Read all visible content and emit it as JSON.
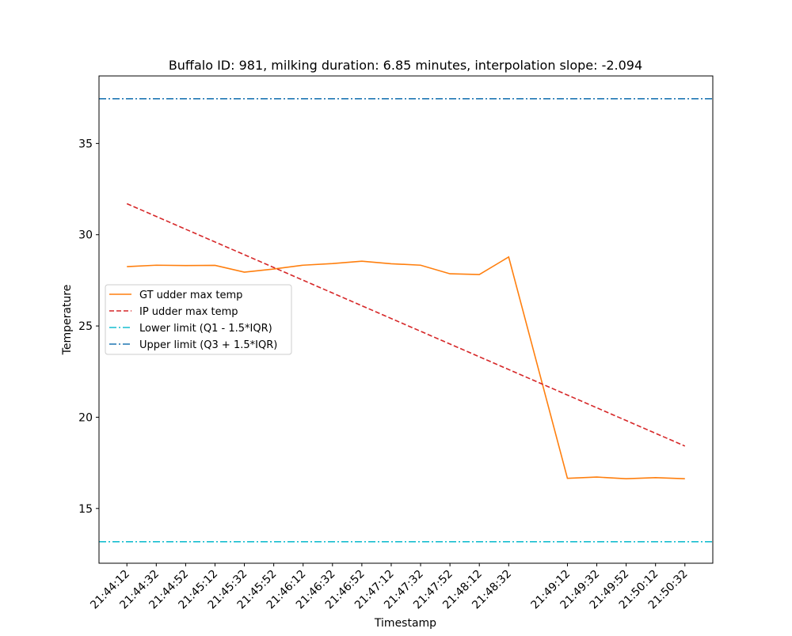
{
  "chart_data": {
    "type": "line",
    "title": "Buffalo ID: 981, milking duration: 6.85 minutes, interpolation slope: -2.094",
    "xlabel": "Timestamp",
    "ylabel": "Temperature",
    "ylim": [
      12.0,
      38.7
    ],
    "yticks": [
      15,
      20,
      25,
      30,
      35
    ],
    "grid": false,
    "legend_position": "center-left",
    "x_tick_labels": [
      "21:44:12",
      "21:44:32",
      "21:44:52",
      "21:45:12",
      "21:45:32",
      "21:45:52",
      "21:46:12",
      "21:46:32",
      "21:46:52",
      "21:47:12",
      "21:47:32",
      "21:47:52",
      "21:48:12",
      "21:48:32",
      "21:49:12",
      "21:49:32",
      "21:49:52",
      "21:50:12",
      "21:50:32"
    ],
    "series": [
      {
        "name": "GT udder max temp",
        "style": "solid",
        "color": "#ff7f0e",
        "x": [
          "21:44:12",
          "21:44:32",
          "21:44:52",
          "21:45:12",
          "21:45:32",
          "21:45:52",
          "21:46:12",
          "21:46:32",
          "21:46:52",
          "21:47:12",
          "21:47:32",
          "21:47:52",
          "21:48:12",
          "21:48:32",
          "21:49:12",
          "21:49:32",
          "21:49:52",
          "21:50:12",
          "21:50:32"
        ],
        "values": [
          28.25,
          28.33,
          28.31,
          28.32,
          27.95,
          28.12,
          28.33,
          28.42,
          28.55,
          28.41,
          28.33,
          27.86,
          27.82,
          28.78,
          16.65,
          16.72,
          16.63,
          16.69,
          16.63
        ]
      },
      {
        "name": "IP udder max temp",
        "style": "dashed",
        "color": "#d62728",
        "x": [
          "21:44:12",
          "21:50:32"
        ],
        "values": [
          31.7,
          18.42
        ]
      },
      {
        "name": "Lower limit (Q1 - 1.5*IQR)",
        "style": "dashdot",
        "color": "#17becf",
        "y": 13.18
      },
      {
        "name": "Upper limit (Q3 + 1.5*IQR)",
        "style": "dashdot",
        "color": "#1f77b4",
        "y": 37.45
      }
    ]
  }
}
